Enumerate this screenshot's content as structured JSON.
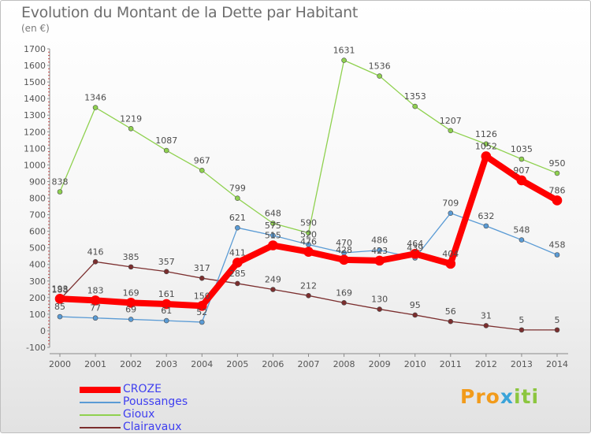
{
  "chart_data": {
    "type": "line",
    "title": "Evolution du Montant de la Dette par Habitant",
    "unit_label": "(en €)",
    "categories": [
      "2000",
      "2001",
      "2002",
      "2003",
      "2004",
      "2005",
      "2006",
      "2007",
      "2008",
      "2009",
      "2010",
      "2011",
      "2012",
      "2013",
      "2014"
    ],
    "ylim": [
      -100,
      1700
    ],
    "yticks": [
      -100,
      0,
      100,
      200,
      300,
      400,
      500,
      600,
      700,
      800,
      900,
      1000,
      1100,
      1200,
      1300,
      1400,
      1500,
      1600,
      1700
    ],
    "grid": false,
    "legend_position": "bottom-left",
    "series": [
      {
        "name": "CROZE",
        "values": [
          193,
          183,
          169,
          161,
          150,
          411,
          515,
          476,
          428,
          423,
          464,
          404,
          1052,
          907,
          786
        ],
        "color": "#ff0000"
      },
      {
        "name": "Poussanges",
        "values": [
          85,
          77,
          69,
          61,
          52,
          621,
          575,
          520,
          470,
          486,
          439,
          709,
          632,
          548,
          458
        ],
        "color": "#5a9bd5"
      },
      {
        "name": "Gioux",
        "values": [
          838,
          1346,
          1219,
          1087,
          967,
          799,
          648,
          590,
          1631,
          1536,
          1353,
          1207,
          1126,
          1035,
          950
        ],
        "color": "#8fd14f"
      },
      {
        "name": "Clairavaux",
        "values": [
          188,
          416,
          385,
          357,
          317,
          285,
          249,
          212,
          169,
          130,
          95,
          56,
          31,
          5,
          5
        ],
        "color": "#7b2e2e"
      }
    ]
  },
  "logo": {
    "p1": "Pro",
    "p2": "x",
    "p3": "iti"
  }
}
